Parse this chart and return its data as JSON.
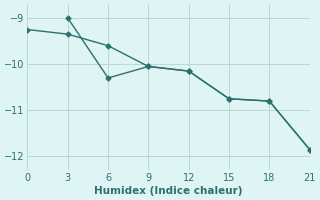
{
  "line1_x": [
    0,
    3,
    6,
    9,
    12,
    15,
    18,
    21
  ],
  "line1_y": [
    -9.25,
    -9.35,
    -9.6,
    -10.05,
    -10.15,
    -10.75,
    -10.8,
    -11.85
  ],
  "line2_x": [
    3,
    6,
    9,
    12,
    15,
    18,
    21
  ],
  "line2_y": [
    -9.0,
    -10.3,
    -10.05,
    -10.15,
    -10.75,
    -10.8,
    -11.85
  ],
  "line_color": "#2d7070",
  "marker": "D",
  "marker_size": 2.5,
  "line_width": 1.0,
  "xlabel": "Humidex (Indice chaleur)",
  "xlim": [
    0,
    21
  ],
  "ylim": [
    -12.3,
    -8.7
  ],
  "xticks": [
    0,
    3,
    6,
    9,
    12,
    15,
    18,
    21
  ],
  "yticks": [
    -12,
    -11,
    -10,
    -9
  ],
  "bg_color": "#dff4f4",
  "grid_color": "#b8d8d8",
  "font_color": "#2d7070",
  "tick_fontsize": 7,
  "xlabel_fontsize": 7.5
}
